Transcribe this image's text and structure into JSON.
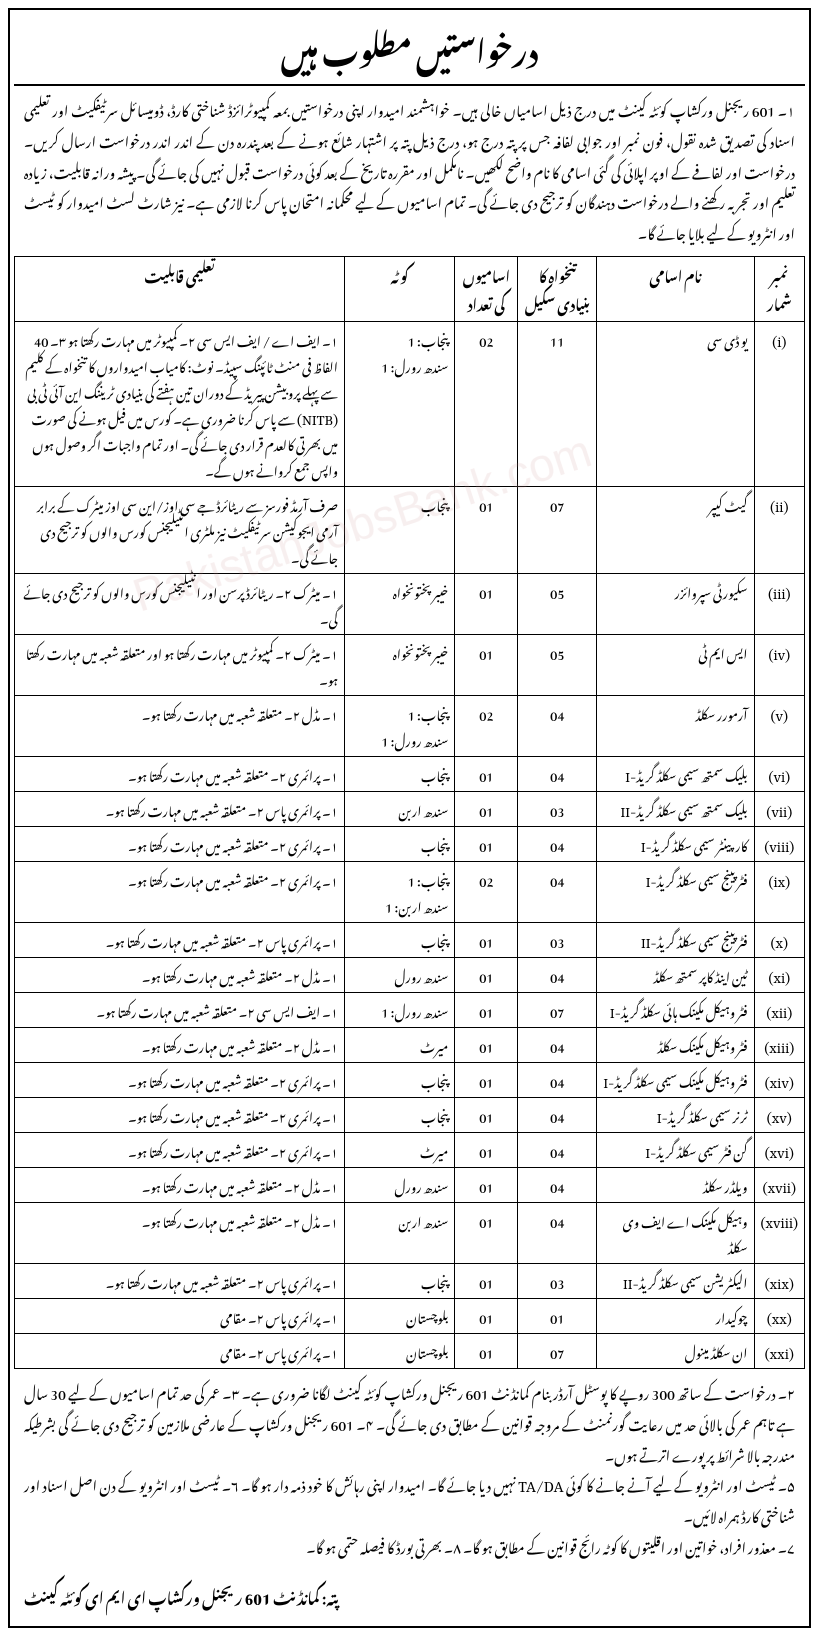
{
  "title": "درخواستیں مطلوب ہیں",
  "intro": "۱۔ 601 ریجنل ورکشاپ کوئٹہ کینٹ میں درج ذیل اسامیاں خالی ہیں۔ خواہشمند امیدوار اپنی درخواستیں بمعہ کمپیوٹرائزڈ شناختی کارڈ، ڈومیسائل سرٹیفکیٹ اور تعلیمی اسناد کی تصدیق شدہ نقول، فون نمبر اور جوابی لفافہ جس پر پتہ درج ہو، درج ذیل پتہ پر اشتہار شائع ہونے کے بعد پندرہ دن کے اندر اندر درخواست ارسال کریں۔ درخواست اور لفافے کے اوپر اپلائی کی گئی اسامی کا نام واضح لکھیں۔ نامکمل اور مقررہ تاریخ کے بعد کوئی درخواست قبول نہیں کی جائے گی۔ پیشہ ورانہ قابلیت، زیادہ تعلیم اور تجربہ رکھنے والے درخواست دہندگان کو ترجیح دی جائے گی۔ تمام اسامیوں کے لیے محکمانہ امتحان پاس کرنا لازمی ہے۔ نیز شارٹ لسٹ امیدوار کو ٹیسٹ اور انٹرویو کے لیے بلایا جائے گا۔",
  "headers": {
    "sno": "نمبر شمار",
    "name": "نام اسامی",
    "scale": "تنخواہ کا بنیادی سکیل",
    "count": "اسامیوں کی تعداد",
    "quota": "کوٹہ",
    "qual": "تعلیمی قابلیت"
  },
  "rows": [
    {
      "sno": "(i)",
      "name": "یو ڈی سی",
      "scale": "11",
      "count": "02",
      "quota": "پنجاب: 1\nسندھ رورل: 1",
      "qual": "۱۔ ایف اے / ایف ایس سی   ۲۔ کمپیوٹر میں مہارت رکھتا ہو   ۳۔ 40 الفاظ فی منٹ ٹائپنگ سپیڈ۔ نوٹ: کامیاب امیدواروں کا تنخواہ کے کلیم سے پہلے پروبیشن پیریڈ کے دوران تین ہفتے کی بنیادی ٹریننگ این آئی ٹی بی (NITB) سے پاس کرنا ضروری ہے۔ کورس میں فیل ہونے کی صورت میں بھرتی کالعدم قرار دی جائے گی۔ اور تمام واجبات اگر وصول ہوں واپس جمع کروانے ہوں گے۔"
    },
    {
      "sno": "(ii)",
      "name": "گیٹ کیپر",
      "scale": "07",
      "count": "01",
      "quota": "پنجاب",
      "qual": "صرف آرمڈ فورسز سے ریٹائرڈ جے سی اوز/این سی اوز میٹرک کے برابر آرمی ایجوکیشن سرٹیفکیٹ نیز ملٹری انٹیلیجنس کورس والوں کو ترجیح دی جائے گی۔"
    },
    {
      "sno": "(iii)",
      "name": "سکیورٹی سپروائزر",
      "scale": "05",
      "count": "01",
      "quota": "خیبر پختونخواہ",
      "qual": "۱۔ میٹرک   ۲۔ ریٹائرڈ پرسن اور انٹیلیجنس کورس والوں کو ترجیح دی جائے گی۔"
    },
    {
      "sno": "(iv)",
      "name": "ایس ایم ٹی",
      "scale": "05",
      "count": "01",
      "quota": "خیبر پختونخواہ",
      "qual": "۱۔ میٹرک   ۲۔ کمپیوٹر میں مہارت رکھتا ہو اور متعلقہ شعبہ میں مہارت رکھتا ہو۔"
    },
    {
      "sno": "(v)",
      "name": "آرمورر سکلڈ",
      "scale": "04",
      "count": "02",
      "quota": "پنجاب: 1\nسندھ رورل: 1",
      "qual": "۱۔ مڈل   ۲۔ متعلقہ شعبہ میں مہارت رکھتا ہو۔"
    },
    {
      "sno": "(vi)",
      "name": "بلیک سمتھ سیمی سکلڈ گریڈ-I",
      "scale": "04",
      "count": "01",
      "quota": "پنجاب",
      "qual": "۱۔ پرائمری   ۲۔ متعلقہ شعبہ میں مہارت رکھتا ہو۔"
    },
    {
      "sno": "(vii)",
      "name": "بلیک سمتھ سیمی سکلڈ گریڈ-II",
      "scale": "03",
      "count": "01",
      "quota": "سندھ اربن",
      "qual": "۱۔ پرائمری پاس   ۲۔ متعلقہ شعبہ میں مہارت رکھتا ہو۔"
    },
    {
      "sno": "(viii)",
      "name": "کارپینٹر سیمی سکلڈ گریڈ-I",
      "scale": "04",
      "count": "01",
      "quota": "پنجاب",
      "qual": "۱۔ پرائمری   ۲۔ متعلقہ شعبہ میں مہارت رکھتا ہو۔"
    },
    {
      "sno": "(ix)",
      "name": "فٹر پینج سیمی سکلڈ گریڈ-I",
      "scale": "04",
      "count": "02",
      "quota": "پنجاب: 1\nسندھ اربن: 1",
      "qual": "۱۔ پرائمری   ۲۔ متعلقہ شعبہ میں مہارت رکھتا ہو۔"
    },
    {
      "sno": "(x)",
      "name": "فٹر پینج سیمی سکلڈ گریڈ-II",
      "scale": "03",
      "count": "01",
      "quota": "پنجاب",
      "qual": "۱۔ پرائمری پاس   ۲۔ متعلقہ شعبہ میں مہارت رکھتا ہو۔"
    },
    {
      "sno": "(xi)",
      "name": "ٹین اینڈ کاپر سمتھ سکلڈ",
      "scale": "04",
      "count": "01",
      "quota": "سندھ رورل",
      "qual": "۱۔ مڈل   ۲۔ متعلقہ شعبہ میں مہارت رکھتا ہو۔"
    },
    {
      "sno": "(xii)",
      "name": "فٹر وہیکل مکینک ہائی سکلڈ گریڈ-I",
      "scale": "07",
      "count": "01",
      "quota": "سندھ رورل: 1",
      "qual": "۱۔ ایف ایس سی   ۲۔ متعلقہ شعبہ میں مہارت رکھتا ہو۔"
    },
    {
      "sno": "(xiii)",
      "name": "فٹر وہیکل مکینک سکلڈ",
      "scale": "04",
      "count": "01",
      "quota": "میرٹ",
      "qual": "۱۔ مڈل   ۲۔ متعلقہ شعبہ میں مہارت رکھتا ہو۔"
    },
    {
      "sno": "(xiv)",
      "name": "فٹر وہیکل مکینک سیمی سکلڈ گریڈ-I",
      "scale": "04",
      "count": "01",
      "quota": "پنجاب",
      "qual": "۱۔ پرائمری   ۲۔ متعلقہ شعبہ میں مہارت رکھتا ہو۔"
    },
    {
      "sno": "(xv)",
      "name": "ٹرنر سیمی سکلڈ گریڈ-I",
      "scale": "04",
      "count": "01",
      "quota": "پنجاب",
      "qual": "۱۔ پرائمری   ۲۔ متعلقہ شعبہ میں مہارت رکھتا ہو۔"
    },
    {
      "sno": "(xvi)",
      "name": "گن فٹر سیمی سکلڈ گریڈ-I",
      "scale": "04",
      "count": "01",
      "quota": "میرٹ",
      "qual": "۱۔ پرائمری   ۲۔ متعلقہ شعبہ میں مہارت رکھتا ہو۔"
    },
    {
      "sno": "(xvii)",
      "name": "ویلڈر سکلڈ",
      "scale": "04",
      "count": "01",
      "quota": "سندھ رورل",
      "qual": "۱۔ مڈل   ۲۔ متعلقہ شعبہ میں مہارت رکھتا ہو۔"
    },
    {
      "sno": "(xviii)",
      "name": "وہیکل مکینک اے ایف وی سکلڈ",
      "scale": "04",
      "count": "01",
      "quota": "سندھ اربن",
      "qual": "۱۔ مڈل   ۲۔ متعلقہ شعبہ میں مہارت رکھتا ہو۔"
    },
    {
      "sno": "(xix)",
      "name": "الیکٹریشن سیمی سکلڈ گریڈ-II",
      "scale": "03",
      "count": "01",
      "quota": "پنجاب",
      "qual": "۱۔ پرائمری پاس   ۲۔ متعلقہ شعبہ میں مہارت رکھتا ہو۔"
    },
    {
      "sno": "(xx)",
      "name": "چوکیدار",
      "scale": "01",
      "count": "01",
      "quota": "بلوچستان",
      "qual": "۱۔ پرائمری پاس   ۲۔ مقامی"
    },
    {
      "sno": "(xxi)",
      "name": "ان سکلڈ مینول",
      "scale": "07",
      "count": "01",
      "quota": "بلوچستان",
      "qual": "۱۔ پرائمری پاس   ۲۔ مقامی"
    }
  ],
  "notes": [
    "۲۔ درخواست کے ساتھ 300 روپے کا پوسٹل آرڈر بنام کمانڈنٹ 601 ریجنل ورکشاپ کوئٹہ کینٹ لگانا ضروری ہے۔   ۳۔ عمر کی حد تمام اسامیوں کے لیے 30 سال ہے تاہم عمر کی بالائی حد میں رعایت گورنمنٹ کے مروجہ قوانین کے مطابق دی جائے گی۔   ۴۔ 601 ریجنل ورکشاپ کے عارضی ملازمین کو ترجیح دی جائے گی بشرطیکہ مندرجہ بالا شرائط پر پورے اترتے ہوں۔",
    "۵۔ ٹیسٹ اور انٹرویو کے لیے آنے جانے کا کوئی TA/DA نہیں دیا جائے گا۔ امیدوار اپنی رہائش کا خود ذمہ دار ہو گا۔   ۶۔ ٹیسٹ اور انٹرویو کے دن اصل اسناد اور شناختی کارڈ ہمراہ لائیں۔",
    "۷۔ معذور افراد، خواتین اور اقلیتوں کا کوٹہ رائج قوانین کے مطابق ہو گا۔   ۸۔ بھرتی بورڈ کا فیصلہ حتمی ہو گا۔"
  ],
  "address": "پتہ: کمانڈنٹ 601 ریجنل ورکشاپ ای ایم ای کوئٹہ کینٹ",
  "watermark": "PakistanJobsBank.com",
  "styling": {
    "border_color": "#000000",
    "background": "#ffffff",
    "text_color": "#000000",
    "title_fontsize": 30,
    "body_fontsize": 14,
    "table_fontsize": 13,
    "col_widths_pct": [
      6,
      20,
      10,
      8,
      14,
      42
    ]
  }
}
